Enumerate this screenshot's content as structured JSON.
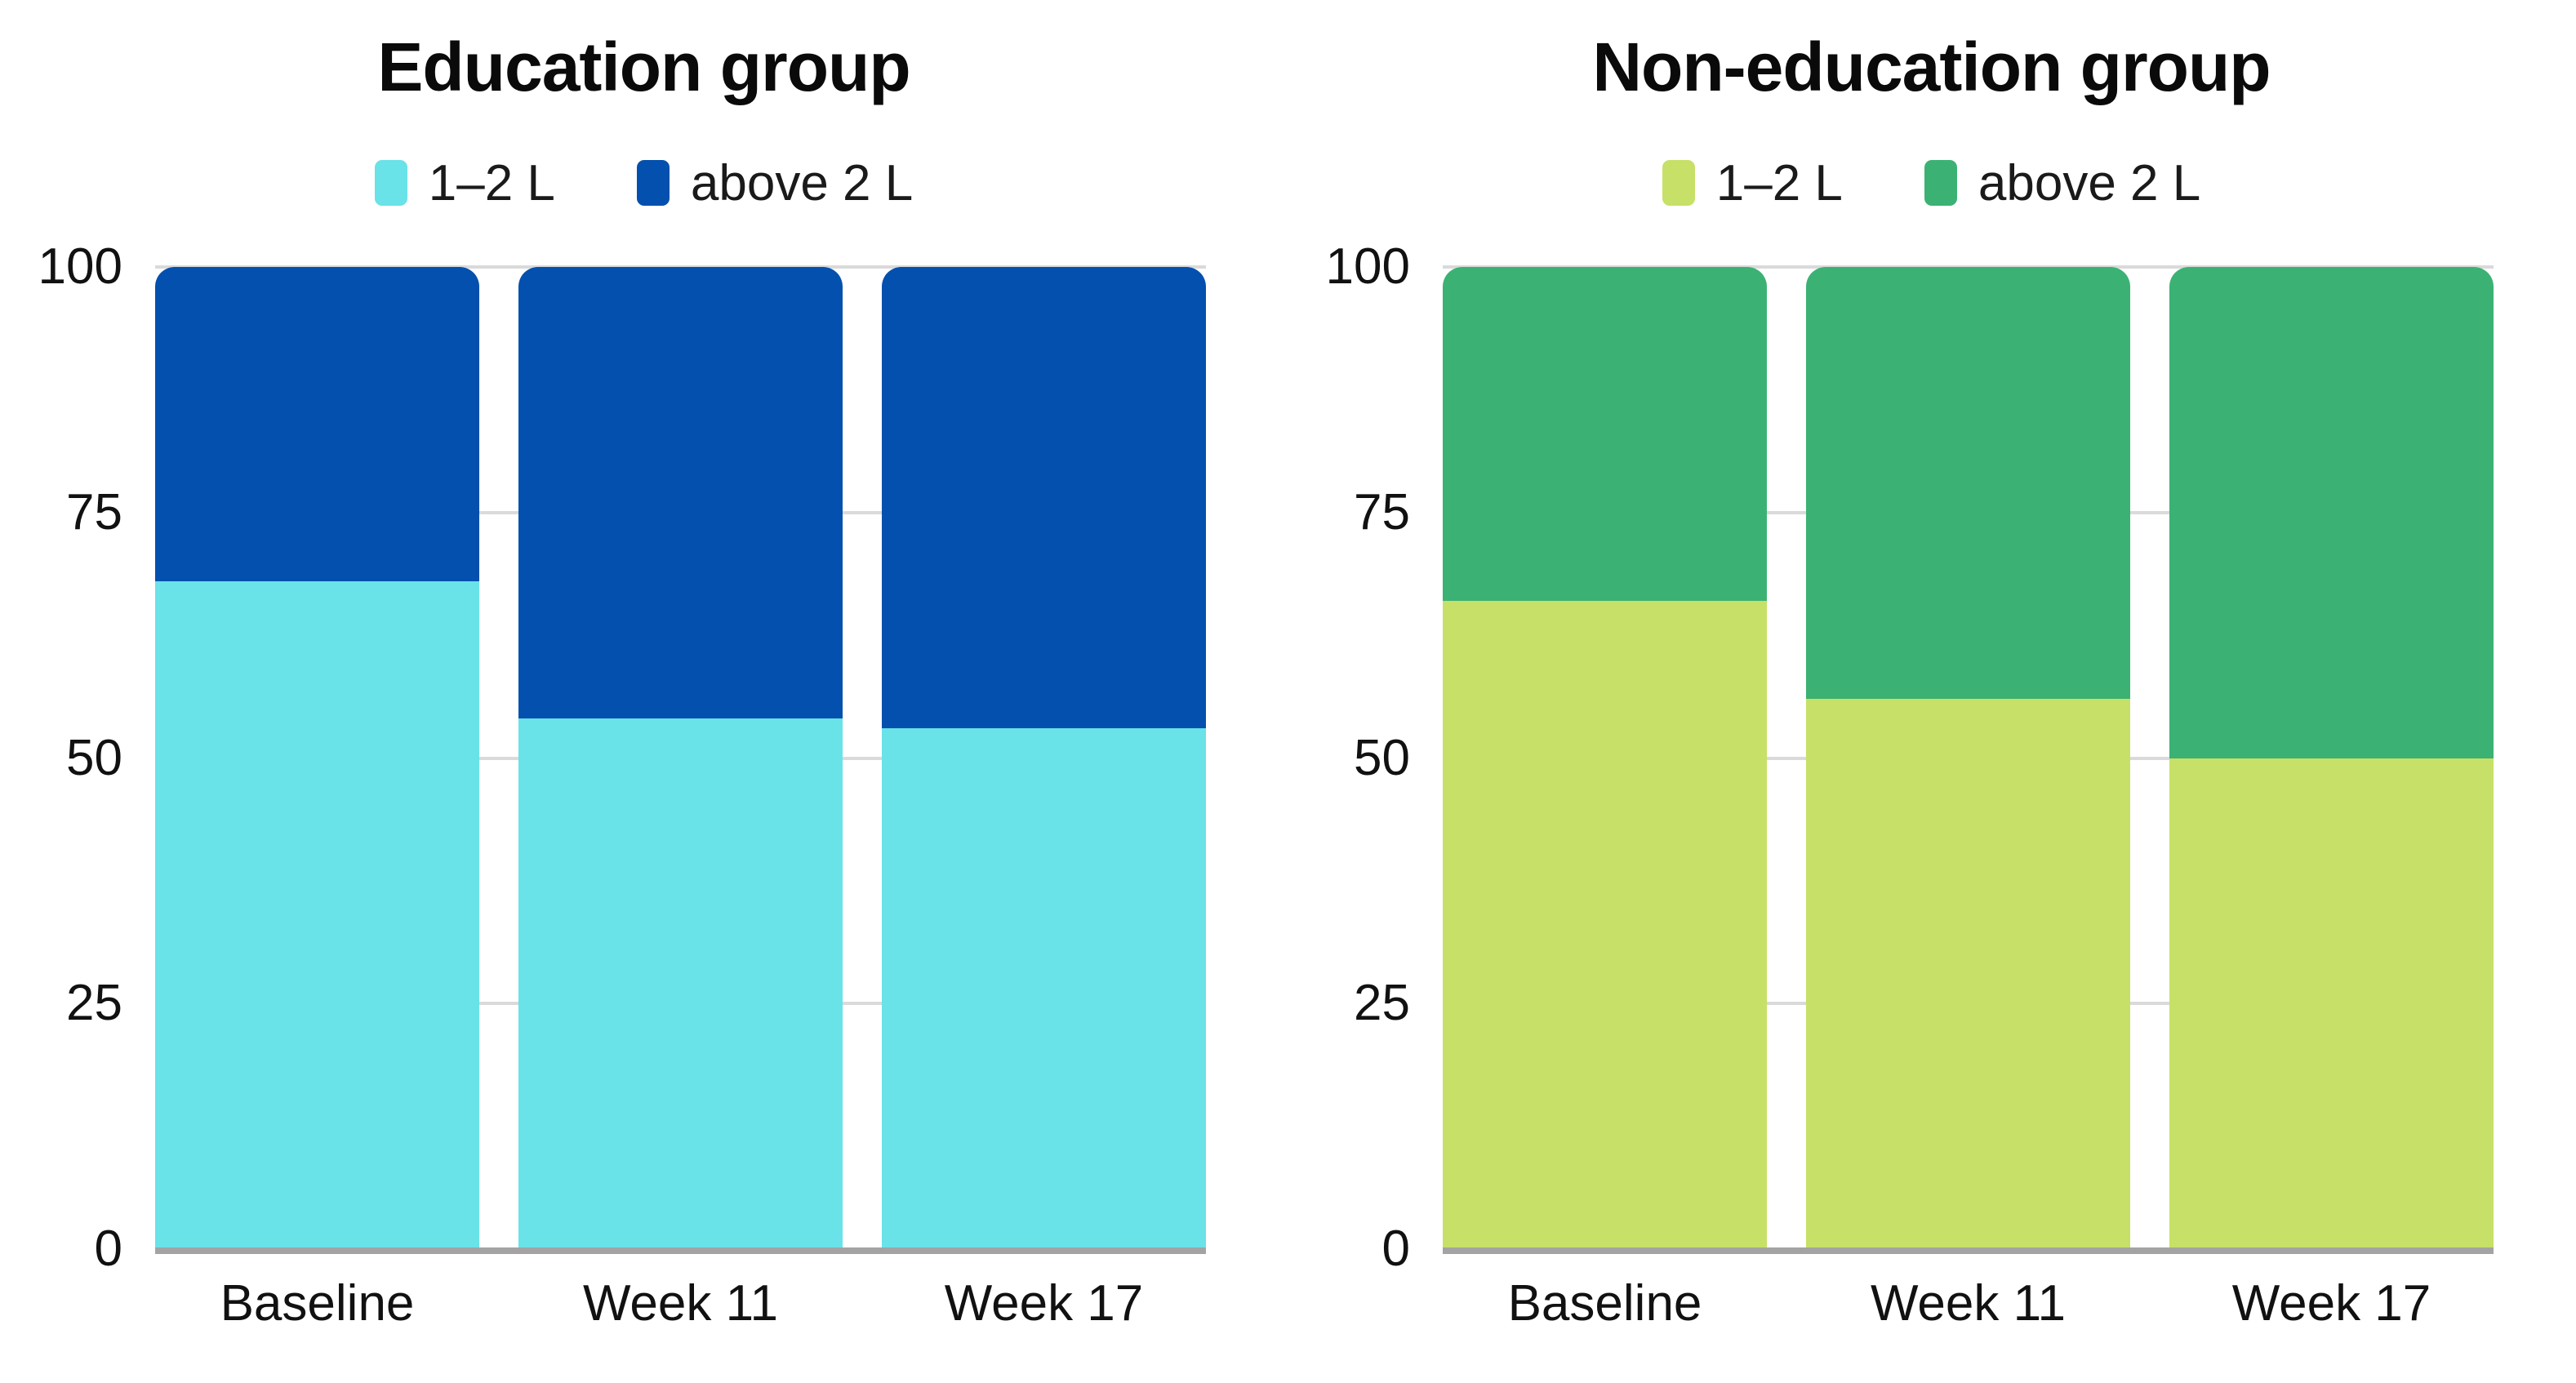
{
  "figure": {
    "background": "#ffffff",
    "text_color": "#111111"
  },
  "chart_data": [
    {
      "type": "bar",
      "stacked": true,
      "title": "Education group",
      "categories": [
        "Baseline",
        "Week 11",
        "Week 17"
      ],
      "series": [
        {
          "name": "1–2 L",
          "color": "#69E2E8",
          "values": [
            68,
            54,
            53
          ]
        },
        {
          "name": "above 2 L",
          "color": "#0450AE",
          "values": [
            32,
            46,
            47
          ]
        }
      ],
      "xlabel": "",
      "ylabel": "",
      "ylim": [
        0,
        100
      ],
      "yticks": [
        0,
        25,
        50,
        75,
        100
      ],
      "grid": true,
      "grid_color": "#dadada",
      "axis_color": "#a3a3a3",
      "legend_position": "top"
    },
    {
      "type": "bar",
      "stacked": true,
      "title": "Non-education group",
      "categories": [
        "Baseline",
        "Week 11",
        "Week 17"
      ],
      "series": [
        {
          "name": "1–2 L",
          "color": "#C7E067",
          "values": [
            66,
            56,
            50
          ]
        },
        {
          "name": "above 2 L",
          "color": "#3BB273",
          "values": [
            34,
            44,
            50
          ]
        }
      ],
      "xlabel": "",
      "ylabel": "",
      "ylim": [
        0,
        100
      ],
      "yticks": [
        0,
        25,
        50,
        75,
        100
      ],
      "grid": true,
      "grid_color": "#dadada",
      "axis_color": "#a3a3a3",
      "legend_position": "top"
    }
  ]
}
